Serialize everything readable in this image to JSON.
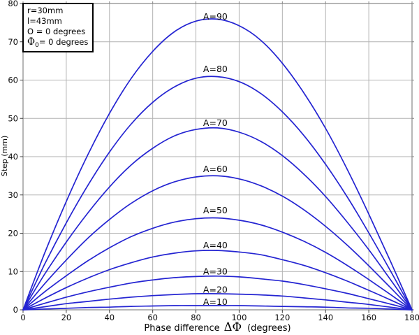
{
  "figure": {
    "background": "#ffffff"
  },
  "chart_data": {
    "type": "line",
    "title": "",
    "xlabel": {
      "prefix": "Phase difference",
      "symbol": "ΔΦ",
      "suffix": "(degrees)"
    },
    "ylabel": "Step (mm)",
    "xlim": [
      0,
      180
    ],
    "ylim": [
      0,
      80
    ],
    "x_ticks": [
      0,
      20,
      40,
      60,
      80,
      100,
      120,
      140,
      160,
      180
    ],
    "y_ticks": [
      0,
      10,
      20,
      30,
      40,
      50,
      60,
      70,
      80
    ],
    "grid": true,
    "legend_position": "top-left inset box",
    "line_color": "#2424d2",
    "grid_color": "#b2b2b2",
    "border_color": "#858585",
    "tick_color": "#404040",
    "legend_box": {
      "lines": [
        {
          "text": "r=30mm"
        },
        {
          "text": "l=43mm"
        },
        {
          "text": "O = 0 degrees"
        },
        {
          "symbol": "Φ",
          "sub": "0",
          "text": "= 0 degrees"
        }
      ]
    },
    "x": [
      0,
      10,
      20,
      30,
      40,
      50,
      60,
      70,
      80,
      90,
      100,
      110,
      120,
      130,
      140,
      150,
      160,
      170,
      180
    ],
    "series": [
      {
        "name": "A-10",
        "label": "A=10",
        "amplitude_deg": 10,
        "peak_mm": 1.1,
        "label_x": 89,
        "label_y": 1.3,
        "values": [
          0,
          0.2,
          0.4,
          0.6,
          0.7,
          0.9,
          1.0,
          1.1,
          1.1,
          1.1,
          1.1,
          1.0,
          0.9,
          0.8,
          0.7,
          0.5,
          0.4,
          0.2,
          0
        ]
      },
      {
        "name": "A-20",
        "label": "A=20",
        "amplitude_deg": 20,
        "peak_mm": 4.2,
        "label_x": 89,
        "label_y": 4.5,
        "values": [
          0,
          0.8,
          1.6,
          2.2,
          2.8,
          3.3,
          3.7,
          4.0,
          4.2,
          4.2,
          4.1,
          3.9,
          3.6,
          3.1,
          2.6,
          2.0,
          1.4,
          0.7,
          0
        ]
      },
      {
        "name": "A-30",
        "label": "A=30",
        "amplitude_deg": 30,
        "peak_mm": 8.8,
        "label_x": 89,
        "label_y": 9.2,
        "values": [
          0,
          1.7,
          3.3,
          4.7,
          5.9,
          7.0,
          7.8,
          8.4,
          8.7,
          8.8,
          8.6,
          8.1,
          7.5,
          6.6,
          5.5,
          4.3,
          2.9,
          1.5,
          0
        ]
      },
      {
        "name": "A-40",
        "label": "A=40",
        "amplitude_deg": 40,
        "peak_mm": 15.5,
        "label_x": 89,
        "label_y": 16.1,
        "values": [
          0,
          3.0,
          5.8,
          8.3,
          10.5,
          12.3,
          13.8,
          14.8,
          15.4,
          15.5,
          15.1,
          14.4,
          13.1,
          11.6,
          9.7,
          7.5,
          5.1,
          2.6,
          0
        ]
      },
      {
        "name": "A-50",
        "label": "A=50",
        "amplitude_deg": 50,
        "peak_mm": 24.0,
        "label_x": 89,
        "label_y": 25.2,
        "values": [
          0,
          4.7,
          8.9,
          12.8,
          16.2,
          19.1,
          21.3,
          22.9,
          23.8,
          24.0,
          23.4,
          22.2,
          20.3,
          17.9,
          15.0,
          11.6,
          7.9,
          4.0,
          0
        ]
      },
      {
        "name": "A-60",
        "label": "A=60",
        "amplitude_deg": 60,
        "peak_mm": 35.0,
        "label_x": 89,
        "label_y": 36.0,
        "values": [
          0,
          6.8,
          13.0,
          18.7,
          23.6,
          27.8,
          31.1,
          33.4,
          34.7,
          35.0,
          34.2,
          32.4,
          29.7,
          26.1,
          21.8,
          16.9,
          11.5,
          5.8,
          0
        ]
      },
      {
        "name": "A-70",
        "label": "A=70",
        "amplitude_deg": 70,
        "peak_mm": 47.5,
        "label_x": 89,
        "label_y": 48.0,
        "values": [
          0,
          9.3,
          17.7,
          25.3,
          32.1,
          37.8,
          42.2,
          45.4,
          47.1,
          47.5,
          46.4,
          44.0,
          40.3,
          35.4,
          29.6,
          22.9,
          15.7,
          7.9,
          0
        ]
      },
      {
        "name": "A-80",
        "label": "A=80",
        "amplitude_deg": 80,
        "peak_mm": 61.0,
        "label_x": 89,
        "label_y": 62.1,
        "values": [
          0,
          11.9,
          22.7,
          32.5,
          41.2,
          48.5,
          54.2,
          58.2,
          60.5,
          60.9,
          59.6,
          56.5,
          51.7,
          45.5,
          38.0,
          29.5,
          20.1,
          10.2,
          0
        ]
      },
      {
        "name": "A-90",
        "label": "A=90",
        "amplitude_deg": 90,
        "peak_mm": 76.0,
        "label_x": 89,
        "label_y": 75.8,
        "values": [
          0,
          14.8,
          28.3,
          40.5,
          51.3,
          60.4,
          67.5,
          72.6,
          75.4,
          75.9,
          74.2,
          70.4,
          64.4,
          56.6,
          47.4,
          36.7,
          25.0,
          12.7,
          0
        ]
      }
    ]
  }
}
